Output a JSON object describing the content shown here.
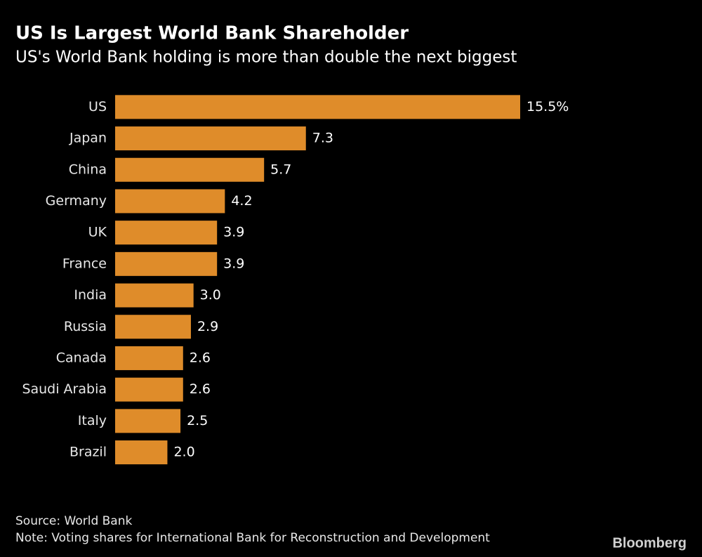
{
  "chart_data": {
    "type": "bar",
    "orientation": "horizontal",
    "title": "US Is Largest World Bank Shareholder",
    "subtitle": "US's World Bank holding is more than double the next biggest",
    "categories": [
      "US",
      "Japan",
      "China",
      "Germany",
      "UK",
      "France",
      "India",
      "Russia",
      "Canada",
      "Saudi Arabia",
      "Italy",
      "Brazil"
    ],
    "values": [
      15.5,
      7.3,
      5.7,
      4.2,
      3.9,
      3.9,
      3.0,
      2.9,
      2.6,
      2.6,
      2.5,
      2.0
    ],
    "value_labels": [
      "15.5%",
      "7.3",
      "5.7",
      "4.2",
      "3.9",
      "3.9",
      "3.0",
      "2.9",
      "2.6",
      "2.6",
      "2.5",
      "2.0"
    ],
    "color": "#df8c2a",
    "source": "Source: World Bank",
    "note": "Note: Voting shares for International Bank for Reconstruction and Development",
    "logo": "Bloomberg"
  }
}
